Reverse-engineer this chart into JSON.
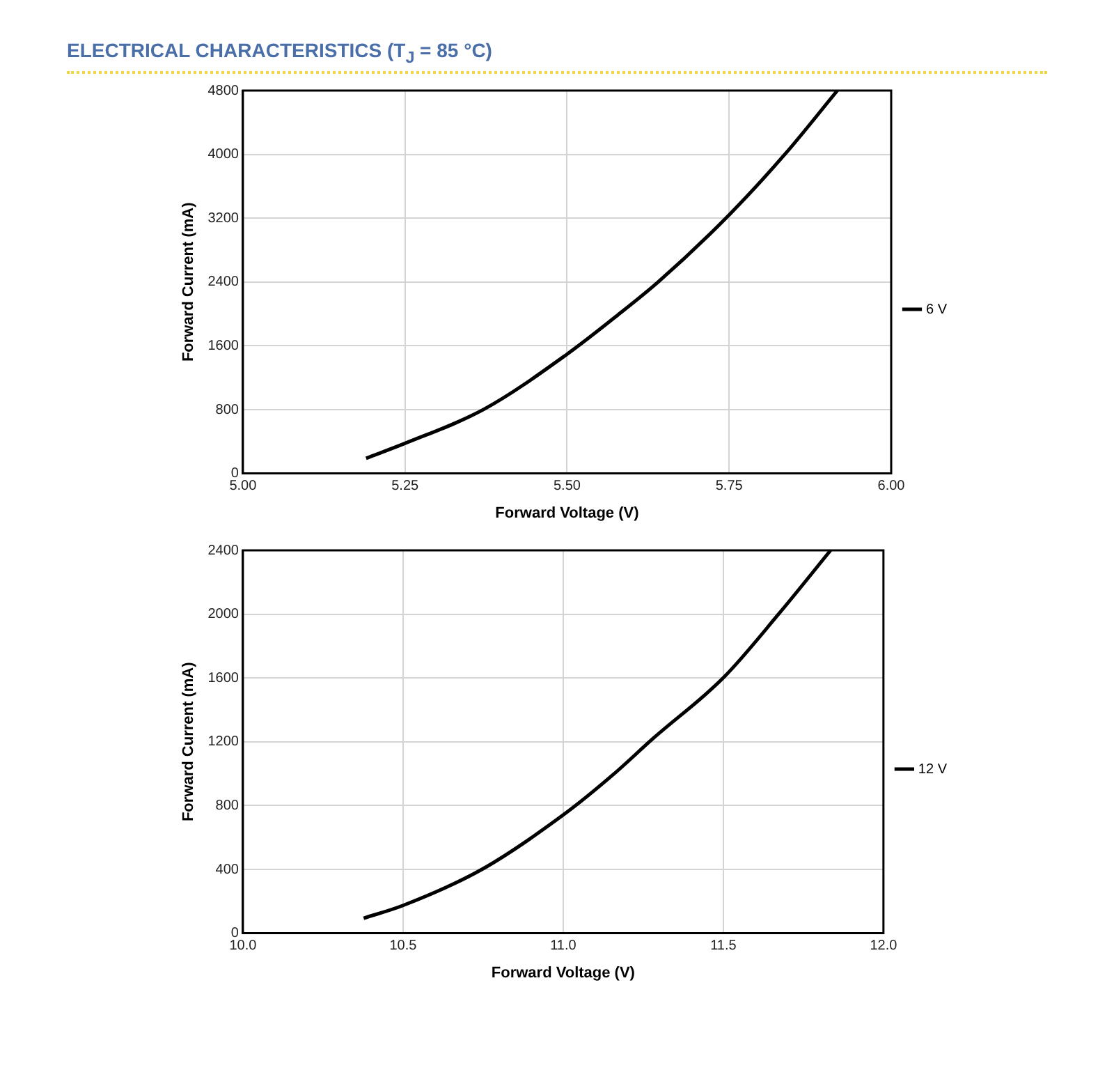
{
  "chart_data": [
    {
      "type": "line",
      "title": "ELECTRICAL CHARACTERISTICS (T$_{J}$ = 85 °C)",
      "xlabel": "Forward Voltage (V)",
      "ylabel": "Forward Current (mA)",
      "series": [
        {
          "name": "6 V",
          "color": "#000000",
          "x": [
            5.19,
            5.25,
            5.373,
            5.5,
            5.578,
            5.641,
            5.75,
            5.837,
            5.917
          ],
          "values": [
            190,
            377,
            810,
            1495,
            1984,
            2403,
            3242,
            4010,
            4800
          ]
        }
      ],
      "xlim": [
        5,
        6
      ],
      "xticks": [
        {
          "value": 5,
          "label": "5.00"
        },
        5.25,
        {
          "value": 5.5,
          "label": "5.50"
        },
        5.75,
        {
          "value": 6,
          "label": "6.00"
        }
      ],
      "ylim": [
        0,
        4800
      ],
      "yticks": [
        0,
        800,
        1600,
        2400,
        3200,
        4000,
        4800
      ],
      "grid": true,
      "legend": "right",
      "marker": "none",
      "line_style": "solid"
    },
    {
      "type": "line",
      "xlabel": "Forward Voltage (V)",
      "ylabel": "Forward Current (mA)",
      "series": [
        {
          "name": "12 V",
          "color": "#000000",
          "x": [
            10.377,
            10.5,
            10.747,
            11.006,
            11.156,
            11.281,
            11.502,
            11.675,
            11.835
          ],
          "values": [
            94,
            174,
            401,
            750,
            994,
            1221,
            1605,
            2006,
            2400
          ]
        }
      ],
      "xlim": [
        10,
        12
      ],
      "xticks": [
        {
          "value": 10,
          "label": "10.0"
        },
        10.5,
        {
          "value": 11,
          "label": "11.0"
        },
        11.5,
        {
          "value": 12,
          "label": "12.0"
        }
      ],
      "ylim": [
        0,
        2400
      ],
      "yticks": [
        0,
        400,
        800,
        1200,
        1600,
        2000,
        2400
      ],
      "grid": true,
      "legend": "right",
      "marker": "none",
      "line_style": "solid"
    }
  ]
}
